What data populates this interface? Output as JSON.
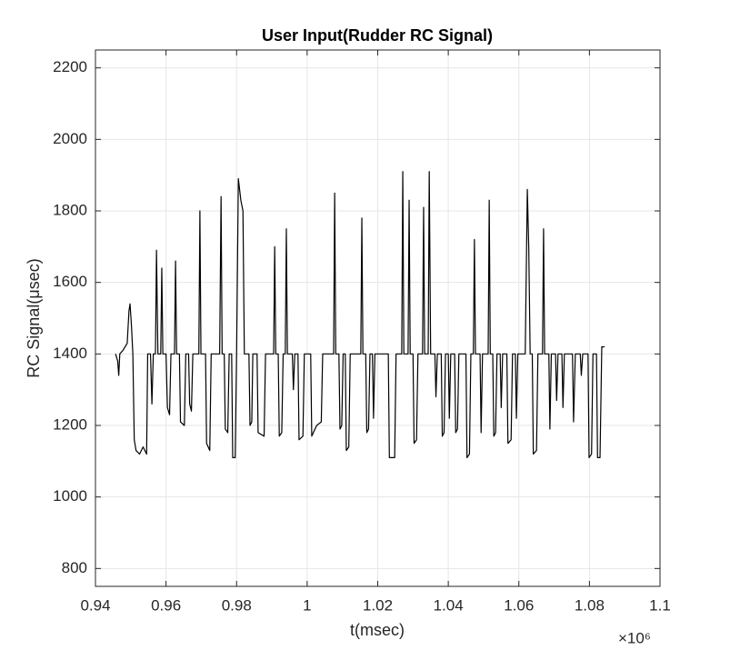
{
  "chart_data": {
    "type": "line",
    "title": "User Input(Rudder RC Signal)",
    "x_label": "t(msec)",
    "y_label": "RC Signal(μsec)",
    "x_multiplier": "×10⁶",
    "xlim": [
      0.94,
      1.1
    ],
    "xticks": [
      0.94,
      0.96,
      0.98,
      1,
      1.02,
      1.04,
      1.06,
      1.08,
      1.1
    ],
    "ylim": [
      750,
      2250
    ],
    "yticks": [
      800,
      1000,
      1200,
      1400,
      1600,
      1800,
      2000,
      2200
    ],
    "grid": true,
    "x": [
      0.9457,
      0.9463,
      0.9466,
      0.9469,
      0.9478,
      0.949,
      0.9495,
      0.9498,
      0.9502,
      0.9506,
      0.951,
      0.9515,
      0.9525,
      0.9535,
      0.9545,
      0.9548,
      0.9556,
      0.956,
      0.9564,
      0.957,
      0.9573,
      0.9577,
      0.9585,
      0.9588,
      0.9591,
      0.96,
      0.9604,
      0.961,
      0.9614,
      0.9624,
      0.9627,
      0.963,
      0.9638,
      0.9641,
      0.9652,
      0.9656,
      0.9664,
      0.9667,
      0.9672,
      0.9676,
      0.9693,
      0.9696,
      0.9699,
      0.9712,
      0.9715,
      0.9724,
      0.9728,
      0.9752,
      0.9756,
      0.9759,
      0.9765,
      0.9768,
      0.9775,
      0.9779,
      0.9786,
      0.9789,
      0.9796,
      0.98,
      0.9805,
      0.9812,
      0.9818,
      0.9822,
      0.9835,
      0.9838,
      0.9843,
      0.9846,
      0.9858,
      0.9861,
      0.9878,
      0.9882,
      0.9905,
      0.9908,
      0.9911,
      0.9918,
      0.9921,
      0.9928,
      0.9932,
      0.9938,
      0.9941,
      0.9944,
      0.9958,
      0.9961,
      0.9965,
      0.9974,
      0.9977,
      0.9988,
      0.9992,
      1.001,
      1.0013,
      1.0027,
      1.004,
      1.0044,
      1.0075,
      1.0078,
      1.0081,
      1.009,
      1.0093,
      1.0098,
      1.0102,
      1.0108,
      1.0111,
      1.0118,
      1.0122,
      1.0152,
      1.0155,
      1.0158,
      1.0166,
      1.0169,
      1.0174,
      1.0178,
      1.0185,
      1.0188,
      1.0192,
      1.023,
      1.0233,
      1.0248,
      1.0252,
      1.0268,
      1.0271,
      1.0274,
      1.0286,
      1.0289,
      1.0292,
      1.03,
      1.0303,
      1.031,
      1.0314,
      1.0327,
      1.033,
      1.0333,
      1.0343,
      1.0346,
      1.035,
      1.0362,
      1.0365,
      1.0369,
      1.038,
      1.0383,
      1.0388,
      1.0392,
      1.04,
      1.0403,
      1.0407,
      1.0418,
      1.0421,
      1.0426,
      1.043,
      1.045,
      1.0453,
      1.046,
      1.0464,
      1.0471,
      1.0474,
      1.0477,
      1.049,
      1.0493,
      1.0497,
      1.0513,
      1.0516,
      1.0519,
      1.0526,
      1.0529,
      1.0534,
      1.0538,
      1.0547,
      1.055,
      1.0554,
      1.0566,
      1.0569,
      1.0578,
      1.0582,
      1.059,
      1.0593,
      1.0597,
      1.0618,
      1.0624,
      1.0628,
      1.0632,
      1.0638,
      1.0641,
      1.065,
      1.0654,
      1.0667,
      1.067,
      1.0673,
      1.0685,
      1.0688,
      1.0692,
      1.0704,
      1.0707,
      1.0711,
      1.0722,
      1.0725,
      1.0729,
      1.0752,
      1.0755,
      1.076,
      1.0774,
      1.0777,
      1.0781,
      1.0796,
      1.0799,
      1.0806,
      1.081,
      1.082,
      1.0823,
      1.083,
      1.0835,
      1.0843
    ],
    "series": [
      {
        "color": "#000000",
        "values": [
          1400,
          1380,
          1340,
          1400,
          1410,
          1430,
          1520,
          1540,
          1480,
          1400,
          1160,
          1130,
          1120,
          1140,
          1120,
          1400,
          1400,
          1260,
          1400,
          1400,
          1690,
          1400,
          1400,
          1640,
          1400,
          1400,
          1250,
          1230,
          1400,
          1400,
          1660,
          1400,
          1400,
          1210,
          1200,
          1400,
          1400,
          1260,
          1240,
          1400,
          1400,
          1800,
          1400,
          1400,
          1150,
          1130,
          1400,
          1400,
          1840,
          1400,
          1400,
          1190,
          1180,
          1400,
          1400,
          1110,
          1110,
          1400,
          1890,
          1830,
          1800,
          1400,
          1400,
          1200,
          1210,
          1400,
          1400,
          1180,
          1170,
          1400,
          1400,
          1700,
          1400,
          1400,
          1170,
          1180,
          1400,
          1400,
          1750,
          1400,
          1400,
          1300,
          1400,
          1400,
          1160,
          1170,
          1400,
          1400,
          1170,
          1200,
          1210,
          1400,
          1400,
          1850,
          1400,
          1400,
          1190,
          1200,
          1400,
          1400,
          1130,
          1140,
          1400,
          1400,
          1780,
          1400,
          1400,
          1180,
          1190,
          1400,
          1400,
          1220,
          1400,
          1400,
          1110,
          1110,
          1400,
          1400,
          1910,
          1400,
          1400,
          1830,
          1400,
          1400,
          1150,
          1160,
          1400,
          1400,
          1810,
          1400,
          1400,
          1910,
          1400,
          1400,
          1280,
          1400,
          1400,
          1170,
          1180,
          1400,
          1400,
          1220,
          1400,
          1400,
          1180,
          1190,
          1400,
          1400,
          1110,
          1120,
          1400,
          1400,
          1720,
          1400,
          1400,
          1180,
          1400,
          1400,
          1830,
          1400,
          1400,
          1170,
          1180,
          1400,
          1400,
          1250,
          1400,
          1400,
          1150,
          1160,
          1400,
          1400,
          1220,
          1400,
          1400,
          1860,
          1700,
          1400,
          1400,
          1120,
          1130,
          1400,
          1400,
          1750,
          1400,
          1400,
          1190,
          1400,
          1400,
          1270,
          1400,
          1400,
          1250,
          1400,
          1400,
          1210,
          1400,
          1400,
          1340,
          1400,
          1400,
          1110,
          1120,
          1400,
          1400,
          1110,
          1110,
          1420,
          1420
        ]
      }
    ]
  }
}
